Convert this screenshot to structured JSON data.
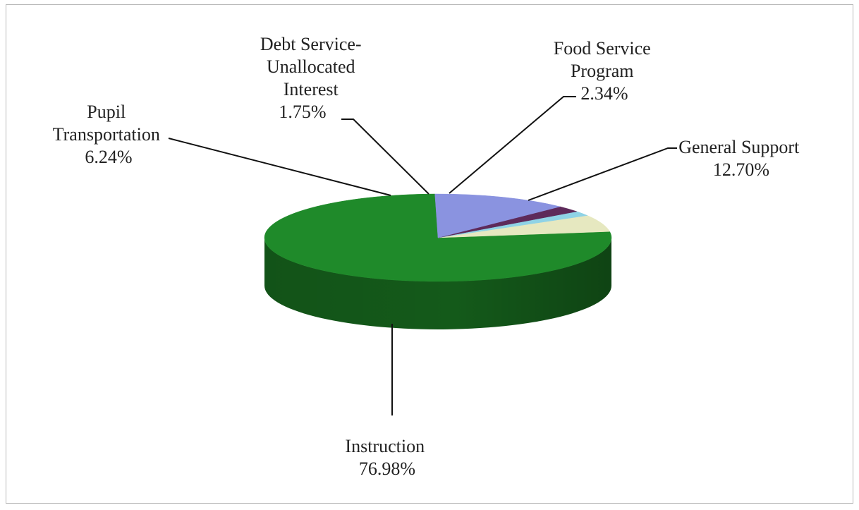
{
  "chart_data": {
    "type": "pie",
    "style": "3d",
    "title": "",
    "slices": [
      {
        "name": "Instruction",
        "value": 76.98,
        "label": "76.98%",
        "color": "#1f8a2a",
        "side_color": "#145a1a"
      },
      {
        "name": "Pupil Transportation",
        "value": 6.24,
        "label": "6.24%",
        "color": "#e6e8c0",
        "side_color": "#b9bb94"
      },
      {
        "name": "Debt Service-Unallocated Interest",
        "value": 1.75,
        "label": "1.75%",
        "color": "#8fd3e6",
        "side_color": "#6aa9bb"
      },
      {
        "name": "Food Service Program",
        "value": 2.34,
        "label": "2.34%",
        "color": "#5e2a5a",
        "side_color": "#3e1a3b"
      },
      {
        "name": "General Support",
        "value": 12.7,
        "label": "12.70%",
        "color": "#8a93e0",
        "side_color": "#636bb0"
      }
    ],
    "labels": {
      "instruction": [
        "Instruction",
        "76.98%"
      ],
      "pupil": [
        "Pupil",
        "Transportation",
        "6.24%"
      ],
      "debt": [
        "Debt Service-",
        "Unallocated",
        "Interest",
        "1.75%"
      ],
      "food": [
        "Food Service",
        "Program",
        "2.34%"
      ],
      "general": [
        "General Support",
        "12.70%"
      ]
    }
  }
}
